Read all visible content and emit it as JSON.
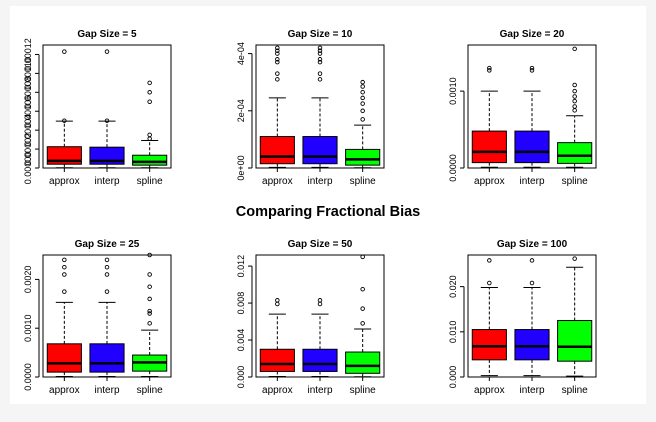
{
  "main_title": "Comparing Fractional Bias",
  "colors": {
    "approx": "#ff0000",
    "interp": "#2200ff",
    "spline": "#00ff00",
    "background": "#f5f5f5",
    "panel": "#ffffff"
  },
  "chart_data": [
    {
      "type": "boxplot",
      "title": "Gap Size = 5",
      "categories": [
        "approx",
        "interp",
        "spline"
      ],
      "ylim": [
        0,
        0.00013
      ],
      "ticks": [
        0,
        2e-05,
        4e-05,
        6e-05,
        8e-05,
        0.0001,
        0.00012
      ],
      "tick_labels": [
        "0.00000",
        "0.00002",
        "0.00004",
        "0.00006",
        "0.00008",
        "0.00010",
        "0.00012"
      ],
      "boxes": [
        {
          "name": "approx",
          "wlo": 3e-07,
          "q1": 4e-06,
          "median": 7.5e-06,
          "q3": 2.25e-05,
          "whi": 4.95e-05,
          "outliers": [
            5e-05,
            0.000123
          ]
        },
        {
          "name": "interp",
          "wlo": 3e-07,
          "q1": 4e-06,
          "median": 7.5e-06,
          "q3": 2.2e-05,
          "whi": 4.95e-05,
          "outliers": [
            5e-05,
            0.000123
          ]
        },
        {
          "name": "spline",
          "wlo": 2e-07,
          "q1": 3e-06,
          "median": 6.5e-06,
          "q3": 1.35e-05,
          "whi": 2.9e-05,
          "outliers": [
            3.1e-05,
            3.5e-05,
            7e-05,
            8e-05,
            9e-05
          ]
        }
      ]
    },
    {
      "type": "boxplot",
      "title": "Gap Size = 10",
      "categories": [
        "approx",
        "interp",
        "spline"
      ],
      "ylim": [
        0,
        0.00043
      ],
      "ticks": [
        0,
        0.0002,
        0.0004
      ],
      "tick_labels": [
        "0e+00",
        "2e-04",
        "4e-04"
      ],
      "boxes": [
        {
          "name": "approx",
          "wlo": 2e-06,
          "q1": 1.5e-05,
          "median": 4e-05,
          "q3": 0.00011,
          "whi": 0.000245,
          "outliers": [
            0.00031,
            0.00033,
            0.00037,
            0.00038,
            0.0004,
            0.00041,
            0.00042
          ]
        },
        {
          "name": "interp",
          "wlo": 2e-06,
          "q1": 1.5e-05,
          "median": 4e-05,
          "q3": 0.00011,
          "whi": 0.000245,
          "outliers": [
            0.00031,
            0.00033,
            0.00037,
            0.00038,
            0.0004,
            0.00041,
            0.00042
          ]
        },
        {
          "name": "spline",
          "wlo": 1e-06,
          "q1": 1e-05,
          "median": 3e-05,
          "q3": 6.5e-05,
          "whi": 0.00015,
          "outliers": [
            0.00017,
            0.0002,
            0.000225,
            0.000245,
            0.000265,
            0.000285,
            0.0003
          ]
        }
      ]
    },
    {
      "type": "boxplot",
      "title": "Gap Size = 20",
      "categories": [
        "approx",
        "interp",
        "spline"
      ],
      "ylim": [
        0,
        0.0016
      ],
      "ticks": [
        0,
        0.001
      ],
      "tick_labels": [
        "0.0000",
        "0.0010"
      ],
      "boxes": [
        {
          "name": "approx",
          "wlo": 1e-05,
          "q1": 7e-05,
          "median": 0.00021,
          "q3": 0.00048,
          "whi": 0.001,
          "outliers": [
            0.00127,
            0.0013
          ]
        },
        {
          "name": "interp",
          "wlo": 1e-05,
          "q1": 7e-05,
          "median": 0.00021,
          "q3": 0.00048,
          "whi": 0.001,
          "outliers": [
            0.00127,
            0.0013
          ]
        },
        {
          "name": "spline",
          "wlo": 1e-05,
          "q1": 6e-05,
          "median": 0.00016,
          "q3": 0.00033,
          "whi": 0.00068,
          "outliers": [
            0.00075,
            0.0008,
            0.00087,
            0.00093,
            0.001,
            0.00108,
            0.00155
          ]
        }
      ]
    },
    {
      "type": "boxplot",
      "title": "Gap Size = 25",
      "categories": [
        "approx",
        "interp",
        "spline"
      ],
      "ylim": [
        0,
        0.0025
      ],
      "ticks": [
        0,
        0.001,
        0.002
      ],
      "tick_labels": [
        "0.0000",
        "0.0010",
        "0.0020"
      ],
      "boxes": [
        {
          "name": "approx",
          "wlo": 1e-05,
          "q1": 0.0001,
          "median": 0.00028,
          "q3": 0.00068,
          "whi": 0.00153,
          "outliers": [
            0.00175,
            0.0021,
            0.00225,
            0.0024
          ]
        },
        {
          "name": "interp",
          "wlo": 1e-05,
          "q1": 0.0001,
          "median": 0.00028,
          "q3": 0.00068,
          "whi": 0.00153,
          "outliers": [
            0.00175,
            0.0021,
            0.00225,
            0.0024
          ]
        },
        {
          "name": "spline",
          "wlo": 1e-05,
          "q1": 0.00012,
          "median": 0.0003,
          "q3": 0.00045,
          "whi": 0.00096,
          "outliers": [
            0.0011,
            0.0013,
            0.00135,
            0.0016,
            0.00185,
            0.0021,
            0.0025
          ]
        }
      ]
    },
    {
      "type": "boxplot",
      "title": "Gap Size = 50",
      "categories": [
        "approx",
        "interp",
        "spline"
      ],
      "ylim": [
        0,
        0.0132
      ],
      "ticks": [
        0,
        0.004,
        0.008,
        0.012
      ],
      "tick_labels": [
        "0.000",
        "0.004",
        "0.008",
        "0.012"
      ],
      "boxes": [
        {
          "name": "approx",
          "wlo": 5e-05,
          "q1": 0.0006,
          "median": 0.0014,
          "q3": 0.003,
          "whi": 0.0068,
          "outliers": [
            0.0079,
            0.0083
          ]
        },
        {
          "name": "interp",
          "wlo": 5e-05,
          "q1": 0.0006,
          "median": 0.0014,
          "q3": 0.003,
          "whi": 0.0068,
          "outliers": [
            0.0079,
            0.0083
          ]
        },
        {
          "name": "spline",
          "wlo": 3e-05,
          "q1": 0.0004,
          "median": 0.0012,
          "q3": 0.0027,
          "whi": 0.0052,
          "outliers": [
            0.0058,
            0.0074,
            0.0095,
            0.013
          ]
        }
      ]
    },
    {
      "type": "boxplot",
      "title": "Gap Size = 100",
      "categories": [
        "approx",
        "interp",
        "spline"
      ],
      "ylim": [
        0,
        0.027
      ],
      "ticks": [
        0,
        0.01,
        0.02
      ],
      "tick_labels": [
        "0.000",
        "0.010",
        "0.020"
      ],
      "boxes": [
        {
          "name": "approx",
          "wlo": 0.0003,
          "q1": 0.0038,
          "median": 0.0068,
          "q3": 0.0105,
          "whi": 0.0198,
          "outliers": [
            0.0208,
            0.0258
          ]
        },
        {
          "name": "interp",
          "wlo": 0.0003,
          "q1": 0.0038,
          "median": 0.0068,
          "q3": 0.0105,
          "whi": 0.0198,
          "outliers": [
            0.0208,
            0.0258
          ]
        },
        {
          "name": "spline",
          "wlo": 0.0002,
          "q1": 0.0035,
          "median": 0.0067,
          "q3": 0.0125,
          "whi": 0.0243,
          "outliers": [
            0.0262
          ]
        }
      ]
    }
  ]
}
